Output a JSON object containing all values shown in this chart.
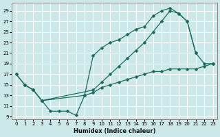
{
  "bg_color": "#cce8e8",
  "grid_color": "#b0d4d4",
  "line_color": "#1a6b5a",
  "xlabel": "Humidex (Indice chaleur)",
  "xlim": [
    -0.5,
    23.5
  ],
  "ylim": [
    8.5,
    30.5
  ],
  "xticks": [
    0,
    1,
    2,
    3,
    4,
    5,
    6,
    7,
    8,
    9,
    10,
    11,
    12,
    13,
    14,
    15,
    16,
    17,
    18,
    19,
    20,
    21,
    22,
    23
  ],
  "yticks": [
    9,
    11,
    13,
    15,
    17,
    19,
    21,
    23,
    25,
    27,
    29
  ],
  "series": [
    {
      "x": [
        0,
        1,
        2,
        3,
        4,
        5,
        6,
        7,
        8,
        9,
        10,
        11,
        12,
        13,
        14,
        15,
        16,
        17,
        18,
        19,
        20,
        21
      ],
      "y": [
        17,
        15,
        14,
        12,
        10,
        10,
        10,
        9.2,
        13,
        20.5,
        22,
        23,
        23.5,
        24.5,
        25.5,
        26,
        28,
        29,
        29.5,
        28.5,
        27,
        21
      ]
    },
    {
      "x": [
        0,
        1,
        2,
        3,
        9,
        10,
        11,
        12,
        13,
        14,
        15,
        16,
        17,
        18,
        19,
        20,
        21,
        22,
        23
      ],
      "y": [
        17,
        15,
        14,
        12,
        14,
        15.5,
        17,
        18.5,
        20,
        21.5,
        23,
        25,
        27,
        29,
        28.5,
        27,
        21,
        19,
        19
      ]
    },
    {
      "x": [
        1,
        2,
        3,
        8,
        9,
        10,
        11,
        12,
        13,
        14,
        15,
        16,
        17,
        18,
        19,
        20,
        21,
        22,
        23
      ],
      "y": [
        15,
        14,
        12,
        13,
        13.5,
        14.5,
        15,
        15.5,
        16,
        16.5,
        17,
        17.5,
        17.5,
        18,
        18,
        18,
        18,
        18.5,
        19
      ]
    }
  ]
}
